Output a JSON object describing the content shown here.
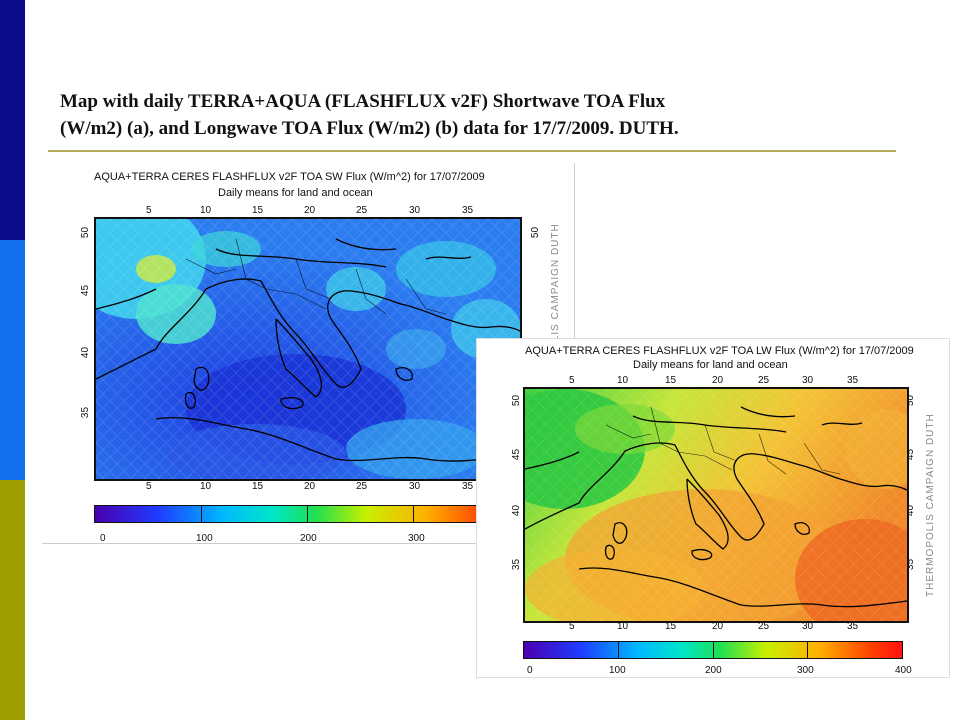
{
  "slide": {
    "title_line1": "Map with daily TERRA+AQUA (FLASHFLUX v2F) Shortwave TOA Flux",
    "title_line2": "(W/m2) (a), and Longwave TOA Flux (W/m2) (b) data for 17/7/2009. DUTH."
  },
  "colors": {
    "bar_top": "#0b0b8c",
    "bar_mid": "#1370ee",
    "bar_bottom": "#9e9e00",
    "rule": "#b5ad55"
  },
  "panel_a": {
    "title": "AQUA+TERRA CERES FLASHFLUX v2F TOA SW Flux (W/m^2) for 17/07/2009",
    "subtitle": "Daily means for land and ocean",
    "lon_ticks": [
      "5",
      "10",
      "15",
      "20",
      "25",
      "30",
      "35"
    ],
    "lat_ticks": [
      "50",
      "45",
      "40",
      "35"
    ],
    "colorbar_ticks": [
      "0",
      "100",
      "200",
      "300"
    ],
    "credit": "THERMOPOLIS CAMPAIGN DUTH"
  },
  "panel_b": {
    "title": "AQUA+TERRA CERES FLASHFLUX v2F TOA LW Flux (W/m^2) for 17/07/2009",
    "subtitle": "Daily means for land and ocean",
    "lon_ticks": [
      "5",
      "10",
      "15",
      "20",
      "25",
      "30",
      "35"
    ],
    "lat_ticks": [
      "50",
      "45",
      "40",
      "35"
    ],
    "colorbar_ticks": [
      "0",
      "100",
      "200",
      "300",
      "400"
    ],
    "credit": "THERMOPOLIS CAMPAIGN DUTH"
  }
}
